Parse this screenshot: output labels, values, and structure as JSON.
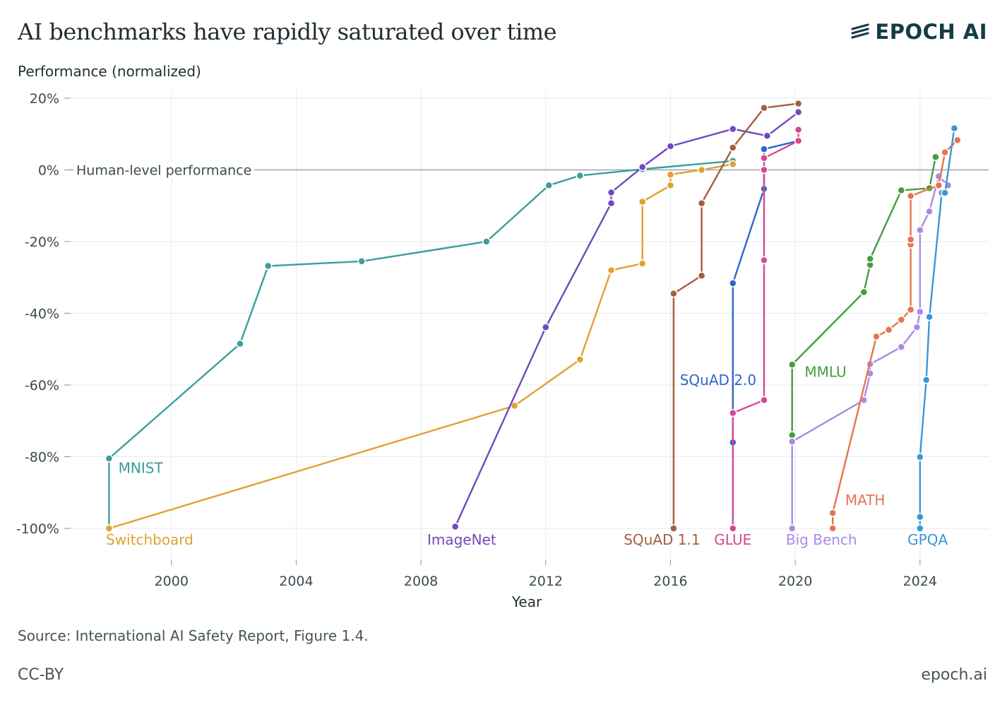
{
  "header": {
    "title": "AI benchmarks have rapidly saturated over time",
    "brand": "EPOCH AI"
  },
  "footer": {
    "source": "Source: International AI Safety Report, Figure 1.4.",
    "license": "CC-BY",
    "site": "epoch.ai"
  },
  "chart_data": {
    "type": "line",
    "title": "AI benchmarks have rapidly saturated over time",
    "xlabel": "Year",
    "ylabel": "Performance (normalized)",
    "xlim": [
      1996.7,
      2026.2
    ],
    "ylim": [
      -100,
      20
    ],
    "x_ticks": [
      2000,
      2004,
      2008,
      2012,
      2016,
      2020,
      2024
    ],
    "x_tick_labels": [
      "2000",
      "2004",
      "2008",
      "2012",
      "2016",
      "2020",
      "2024"
    ],
    "y_ticks": [
      20,
      0,
      -20,
      -40,
      -60,
      -80,
      -100
    ],
    "y_tick_labels": [
      "20%",
      "0%",
      "-20%",
      "-40%",
      "-60%",
      "-80%",
      "-100%"
    ],
    "grid": true,
    "reference_line": {
      "y": 0,
      "label": "Human-level performance"
    },
    "series": [
      {
        "name": "MNIST",
        "color": "#3a9e9b",
        "x": [
          1998.0,
          1998.0,
          2002.2,
          2003.1,
          2006.1,
          2010.1,
          2012.1,
          2013.1,
          2015.1,
          2018.0
        ],
        "y": [
          -100,
          -80.5,
          -48.5,
          -26.8,
          -25.5,
          -20.0,
          -4.3,
          -1.6,
          0.2,
          2.5
        ]
      },
      {
        "name": "Switchboard",
        "color": "#e0a132",
        "x": [
          1998.0,
          2011.0,
          2013.1,
          2014.1,
          2015.1,
          2015.1,
          2016.0,
          2016.0,
          2017.0,
          2018.0
        ],
        "y": [
          -100,
          -65.8,
          -52.9,
          -28.0,
          -26.1,
          -8.9,
          -4.3,
          -1.3,
          0.0,
          1.6
        ]
      },
      {
        "name": "ImageNet",
        "color": "#7049bd",
        "x": [
          2009.1,
          2012.0,
          2014.1,
          2014.1,
          2015.1,
          2016.0,
          2018.0,
          2019.1,
          2020.1
        ],
        "y": [
          -99.5,
          -43.9,
          -9.3,
          -6.3,
          0.8,
          6.6,
          11.4,
          9.5,
          16.1
        ]
      },
      {
        "name": "SQuAD 1.1",
        "color": "#a35e3f",
        "x": [
          2016.1,
          2016.1,
          2017.0,
          2017.0,
          2018.0,
          2019.0,
          2020.1
        ],
        "y": [
          -100,
          -34.5,
          -29.5,
          -9.3,
          6.2,
          17.3,
          18.5
        ]
      },
      {
        "name": "SQuAD 2.0",
        "color": "#2f66c9",
        "x": [
          2018.0,
          2018.0,
          2019.0,
          2019.0,
          2020.1
        ],
        "y": [
          -76.0,
          -31.6,
          -5.3,
          5.8,
          8.1
        ]
      },
      {
        "name": "GLUE",
        "color": "#d34a91",
        "x": [
          2018.0,
          2018.0,
          2019.0,
          2019.0,
          2019.0,
          2019.0,
          2020.1,
          2020.1
        ],
        "y": [
          -100,
          -67.8,
          -64.2,
          -25.2,
          0.0,
          3.3,
          8.1,
          11.2
        ]
      },
      {
        "name": "MMLU",
        "color": "#479b42",
        "x": [
          2019.9,
          2019.9,
          2022.2,
          2022.4,
          2022.4,
          2023.4,
          2024.3,
          2024.5
        ],
        "y": [
          -74.0,
          -54.3,
          -34.1,
          -26.5,
          -24.8,
          -5.7,
          -5.1,
          3.6
        ]
      },
      {
        "name": "Big Bench",
        "color": "#ab8ae6",
        "x": [
          2019.9,
          2019.9,
          2022.2,
          2022.4,
          2022.4,
          2023.4,
          2023.9,
          2024.0,
          2024.0,
          2024.3,
          2024.6,
          2024.9
        ],
        "y": [
          -100,
          -75.8,
          -64.2,
          -56.8,
          -54.2,
          -49.4,
          -43.9,
          -39.6,
          -16.8,
          -11.6,
          -1.8,
          -4.3
        ]
      },
      {
        "name": "MATH",
        "color": "#e47550",
        "x": [
          2021.2,
          2021.2,
          2022.6,
          2023.0,
          2023.4,
          2023.7,
          2023.7,
          2023.7,
          2023.7,
          2024.6,
          2024.8,
          2025.2
        ],
        "y": [
          -100,
          -95.7,
          -46.5,
          -44.6,
          -41.8,
          -39.0,
          -20.8,
          -19.4,
          -7.3,
          -4.3,
          4.9,
          8.3
        ]
      },
      {
        "name": "GPQA",
        "color": "#3898d4",
        "x": [
          2024.0,
          2024.0,
          2024.0,
          2024.2,
          2024.3,
          2024.3,
          2024.7,
          2024.8,
          2025.1
        ],
        "y": [
          -100,
          -96.8,
          -80.1,
          -58.6,
          -41.0,
          -41.0,
          -6.4,
          -6.4,
          11.6
        ]
      }
    ],
    "series_labels": [
      {
        "name": "MNIST",
        "x": 1998.3,
        "y": -84.5,
        "color": "#3a9e9b"
      },
      {
        "name": "Switchboard",
        "x": 1997.9,
        "y": -104.5,
        "color": "#e0a132"
      },
      {
        "name": "ImageNet",
        "x": 2008.2,
        "y": -104.5,
        "color": "#7049bd"
      },
      {
        "name": "SQuAD 1.1",
        "x": 2014.5,
        "y": -104.5,
        "color": "#a35e3f"
      },
      {
        "name": "SQuAD 2.0",
        "x": 2016.3,
        "y": -60.0,
        "color": "#2f66c9"
      },
      {
        "name": "GLUE",
        "x": 2017.4,
        "y": -104.5,
        "color": "#d34a91"
      },
      {
        "name": "MMLU",
        "x": 2020.3,
        "y": -57.7,
        "color": "#479b42"
      },
      {
        "name": "Big Bench",
        "x": 2019.7,
        "y": -104.5,
        "color": "#ab8ae6"
      },
      {
        "name": "MATH",
        "x": 2021.6,
        "y": -93.5,
        "color": "#e47550"
      },
      {
        "name": "GPQA",
        "x": 2023.6,
        "y": -104.5,
        "color": "#3898d4"
      }
    ]
  }
}
